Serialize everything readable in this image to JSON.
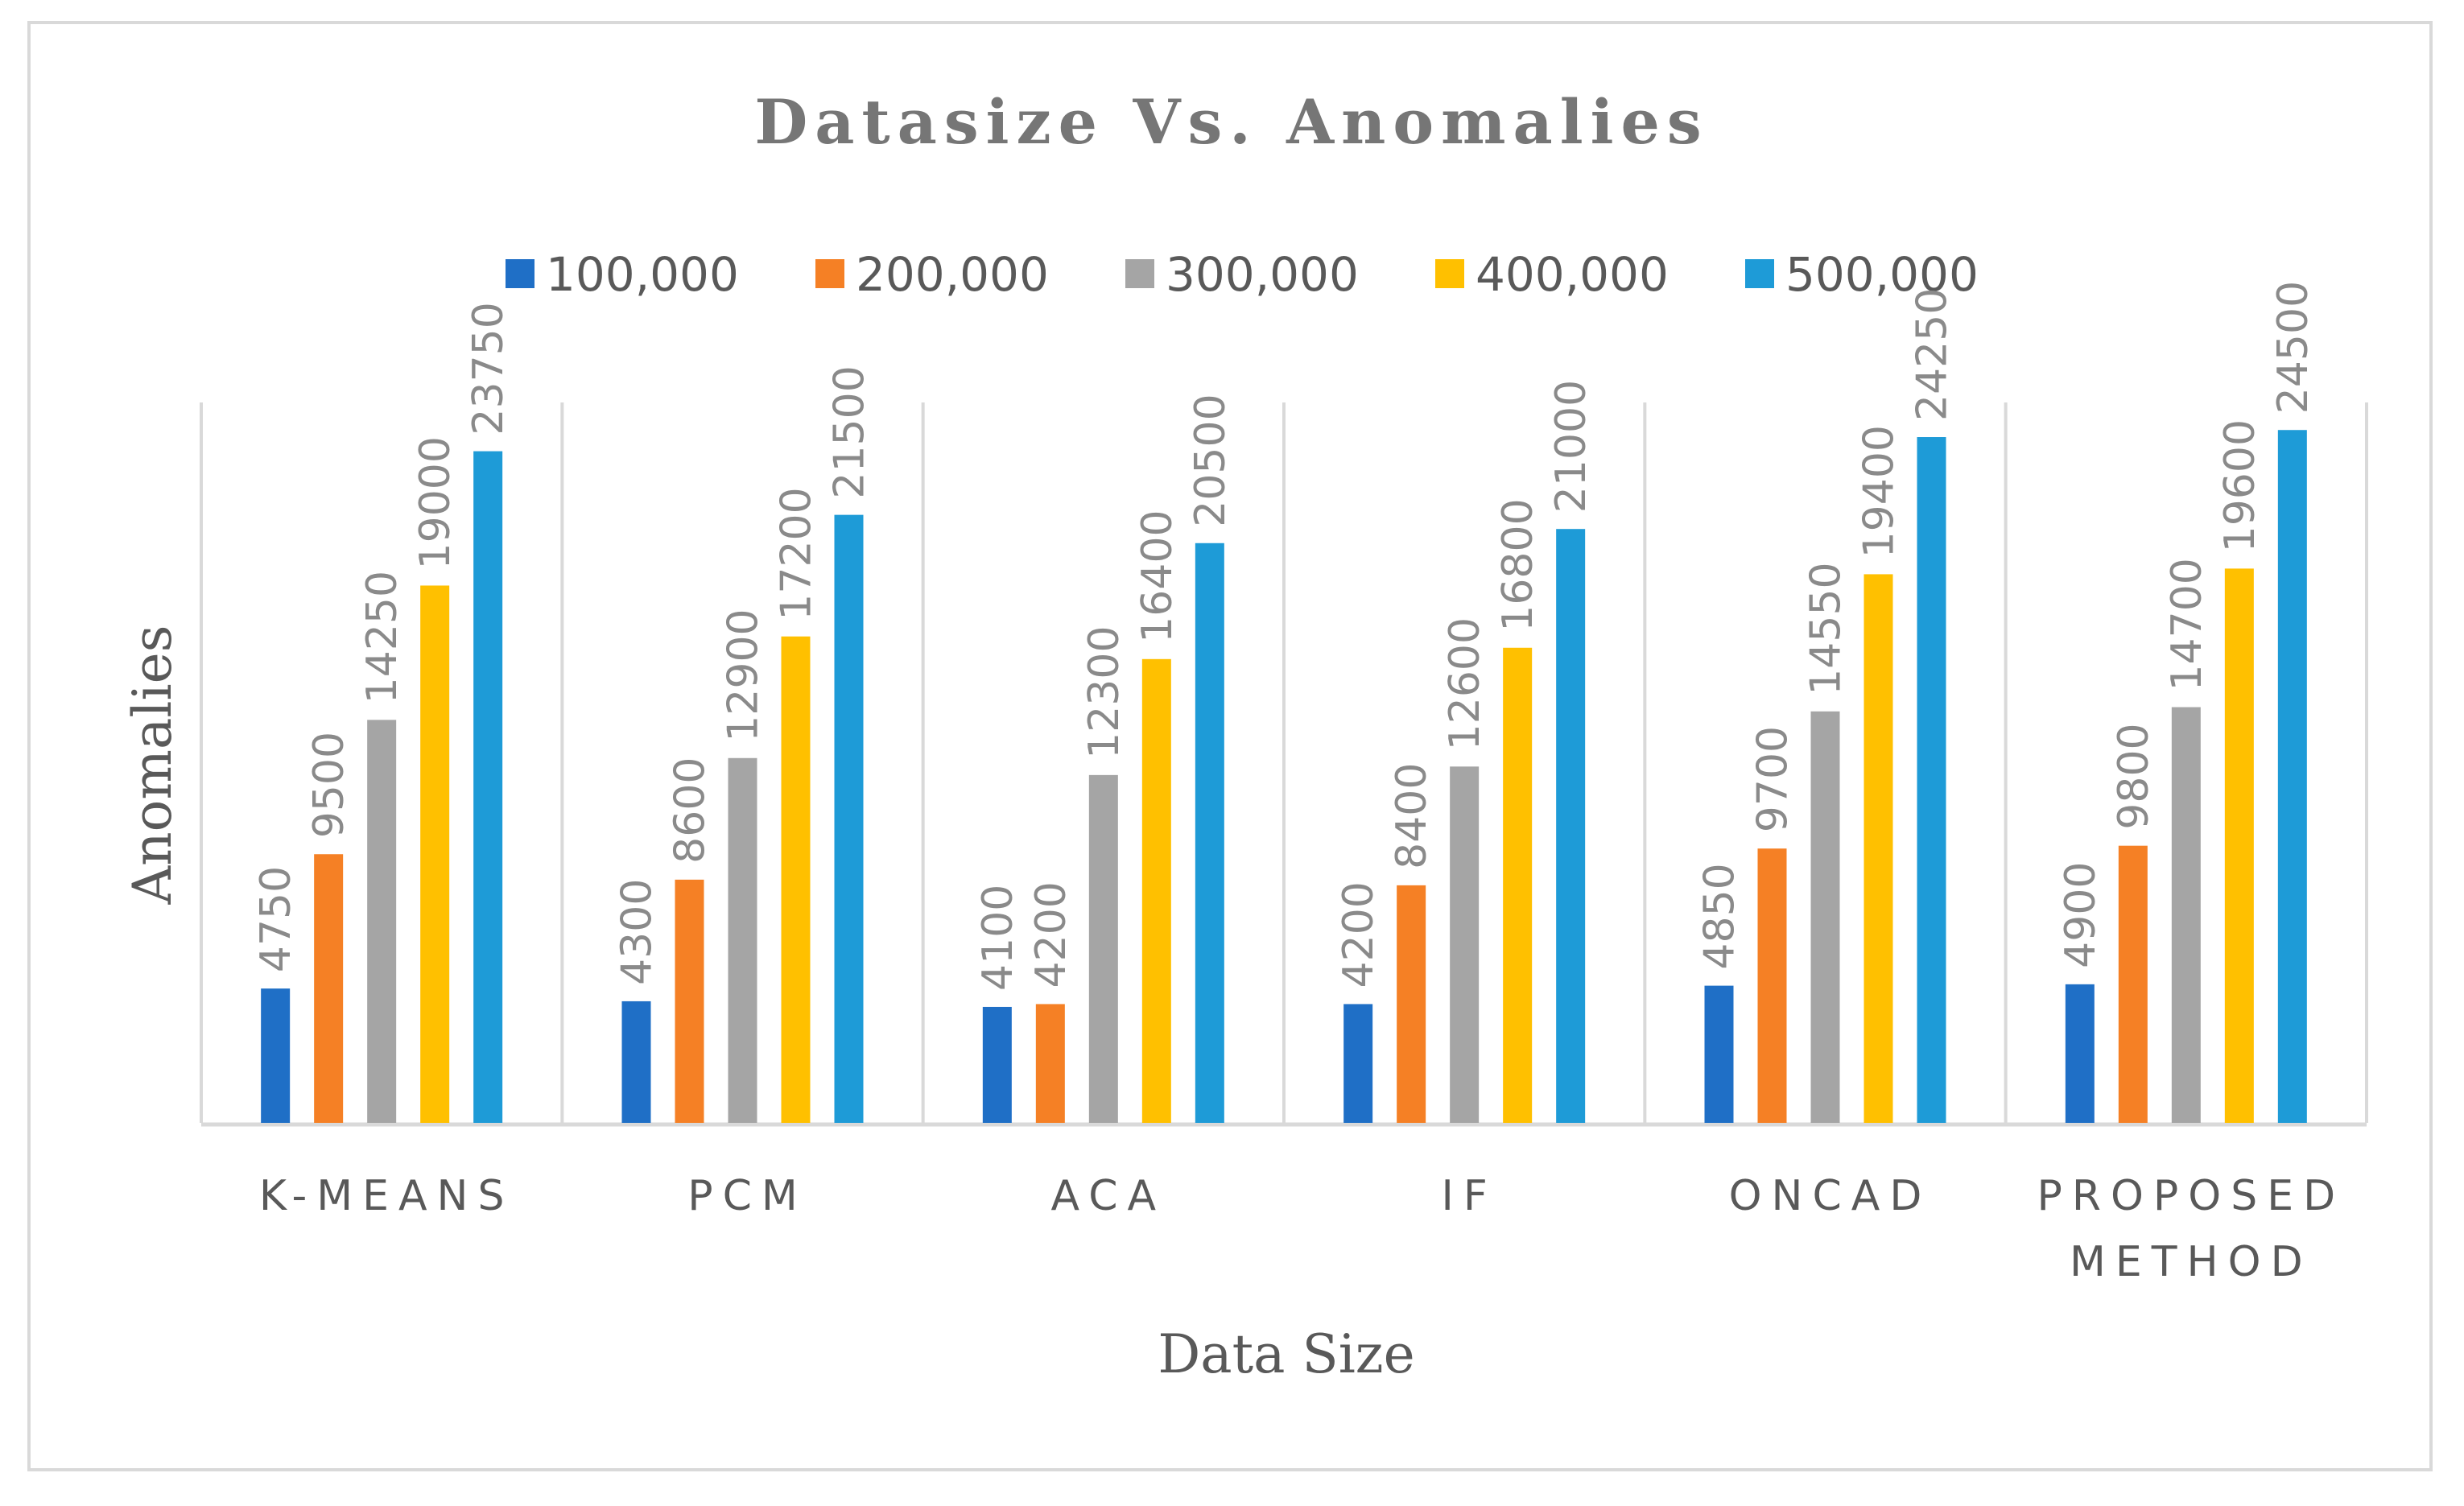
{
  "chart_data": {
    "type": "bar",
    "title": "Datasize Vs. Anomalies",
    "xlabel": "Data Size",
    "ylabel": "Anomalies",
    "categories": [
      "K-MEANS",
      "PCM",
      "ACA",
      "IF",
      "ONCAD",
      "PROPOSED METHOD"
    ],
    "series": [
      {
        "name": "100,000",
        "color": "#1f6fc6",
        "values": [
          4750,
          4300,
          4100,
          4200,
          4850,
          4900
        ]
      },
      {
        "name": "200,000",
        "color": "#f58025",
        "values": [
          9500,
          8600,
          4200,
          8400,
          9700,
          9800
        ]
      },
      {
        "name": "300,000",
        "color": "#a5a5a5",
        "values": [
          14250,
          12900,
          12300,
          12600,
          14550,
          14700
        ]
      },
      {
        "name": "400,000",
        "color": "#ffc000",
        "values": [
          19000,
          17200,
          16400,
          16800,
          19400,
          19600
        ]
      },
      {
        "name": "500,000",
        "color": "#1e9bd7",
        "values": [
          23750,
          21500,
          20500,
          21000,
          24250,
          24500
        ]
      }
    ],
    "ylim": [
      0,
      30000
    ],
    "legend_position": "top",
    "grid": false,
    "data_labels": true
  }
}
